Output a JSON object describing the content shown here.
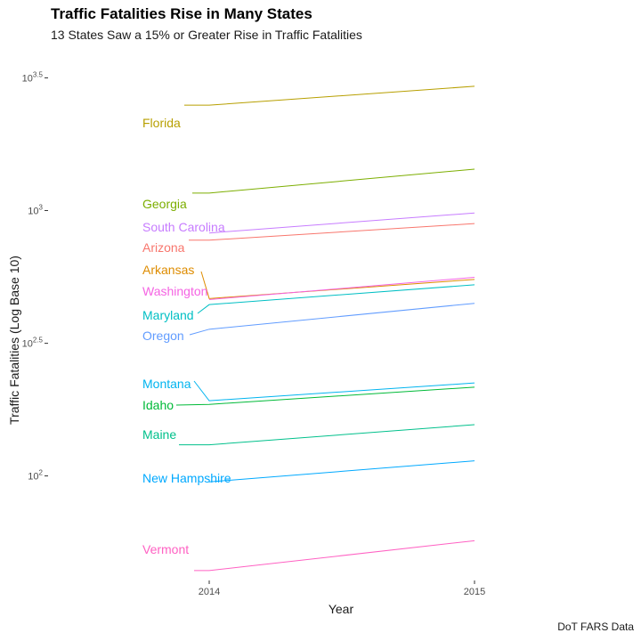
{
  "header": {
    "title": "Traffic Fatalities Rise in Many States",
    "subtitle": "13 States Saw a 15% or Greater Rise in Traffic Fatalities"
  },
  "caption": "DoT FARS Data",
  "chart_data": {
    "type": "line",
    "title": "Traffic Fatalities Rise in Many States",
    "subtitle": "13 States Saw a 15% or Greater Rise in Traffic Fatalities",
    "xlabel": "Year",
    "ylabel": "Traffic Fatalities (Log Base 10)",
    "x": [
      2014,
      2015
    ],
    "y_scale": "log10",
    "ylim": [
      41,
      3100
    ],
    "y_ticks": [
      {
        "value": 100,
        "base": "10",
        "exp": "2"
      },
      {
        "value": 316,
        "base": "10",
        "exp": "2.5"
      },
      {
        "value": 1000,
        "base": "10",
        "exp": "3"
      },
      {
        "value": 3162,
        "base": "10",
        "exp": "3.5"
      }
    ],
    "grid": false,
    "legend": "direct labels at left",
    "series": [
      {
        "name": "Florida",
        "color": "#B79F00",
        "values": [
          2494,
          2939
        ]
      },
      {
        "name": "Georgia",
        "color": "#7CAE00",
        "values": [
          1164,
          1432
        ]
      },
      {
        "name": "South Carolina",
        "color": "#C77CFF",
        "values": [
          823,
          979
        ]
      },
      {
        "name": "Arizona",
        "color": "#F8766D",
        "values": [
          773,
          893
        ]
      },
      {
        "name": "Arkansas",
        "color": "#DE8C00",
        "values": [
          466,
          550
        ]
      },
      {
        "name": "Washington",
        "color": "#F564E3",
        "values": [
          462,
          560
        ]
      },
      {
        "name": "Maryland",
        "color": "#00BFC4",
        "values": [
          442,
          525
        ]
      },
      {
        "name": "Oregon",
        "color": "#619CFF",
        "values": [
          357,
          447
        ]
      },
      {
        "name": "Montana",
        "color": "#00B4EF",
        "values": [
          192,
          224
        ]
      },
      {
        "name": "Idaho",
        "color": "#00BA38",
        "values": [
          186,
          216
        ]
      },
      {
        "name": "Maine",
        "color": "#00C08B",
        "values": [
          131,
          156
        ]
      },
      {
        "name": "New Hampshire",
        "color": "#00A9FF",
        "values": [
          95,
          114
        ]
      },
      {
        "name": "Vermont",
        "color": "#FF61C3",
        "values": [
          44,
          57
        ]
      }
    ],
    "labels": [
      {
        "series": "Florida",
        "text": "Florida"
      },
      {
        "series": "Georgia",
        "text": "Georgia"
      },
      {
        "series": "South Carolina",
        "text": "South Carolina"
      },
      {
        "series": "Arizona",
        "text": "Arizona"
      },
      {
        "series": "Arkansas",
        "text": "Arkansas"
      },
      {
        "series": "Washington",
        "text": "Washington"
      },
      {
        "series": "Maryland",
        "text": "Maryland"
      },
      {
        "series": "Oregon",
        "text": "Oregon"
      },
      {
        "series": "Montana",
        "text": "Montana"
      },
      {
        "series": "Idaho",
        "text": "Idaho"
      },
      {
        "series": "Maine",
        "text": "Maine"
      },
      {
        "series": "New Hampshire",
        "text": "New Hampshire"
      },
      {
        "series": "Vermont",
        "text": "Vermont"
      }
    ]
  }
}
